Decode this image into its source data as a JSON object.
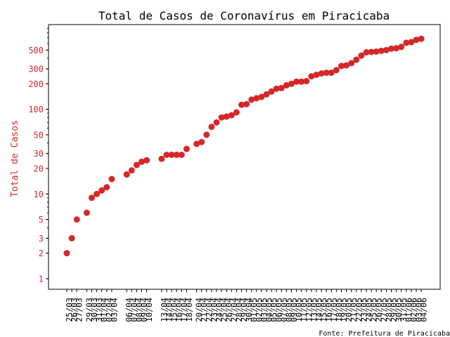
{
  "chart_data": {
    "type": "scatter",
    "title": "Total de Casos de Coronavírus em Piracicaba",
    "ylabel": "Total de Casos",
    "xlabel": "",
    "yscale": "log",
    "ylim": [
      0.75,
      1000
    ],
    "yticks": [
      1,
      2,
      3,
      5,
      10,
      20,
      30,
      50,
      100,
      200,
      300,
      500
    ],
    "ytick_labels": [
      "1",
      "2",
      "3",
      "5",
      "10",
      "20",
      "30",
      "50",
      "100",
      "200",
      "300",
      "500"
    ],
    "grid": false,
    "series_color": "#d62728",
    "axis_label_color": "#d62728",
    "x": [
      "25/03",
      "26/03",
      "27/03",
      "29/03",
      "30/03",
      "31/03",
      "01/04",
      "02/04",
      "03/04",
      "06/04",
      "07/04",
      "08/04",
      "09/04",
      "10/04",
      "13/04",
      "14/04",
      "15/04",
      "16/04",
      "17/04",
      "18/04",
      "20/04",
      "21/04",
      "22/04",
      "23/04",
      "24/04",
      "25/04",
      "26/04",
      "27/04",
      "28/04",
      "29/04",
      "30/04",
      "01/05",
      "02/05",
      "03/05",
      "04/05",
      "05/05",
      "06/05",
      "07/05",
      "08/05",
      "09/05",
      "10/05",
      "11/05",
      "12/05",
      "13/05",
      "14/05",
      "15/05",
      "16/05",
      "17/05",
      "18/05",
      "19/05",
      "20/05",
      "21/05",
      "22/05",
      "23/05",
      "24/05",
      "25/05",
      "26/05",
      "27/05",
      "28/05",
      "29/05",
      "30/05",
      "31/05",
      "01/06",
      "02/06",
      "03/06",
      "04/06"
    ],
    "x_index": [
      0,
      1,
      2,
      4,
      5,
      6,
      7,
      8,
      9,
      12,
      13,
      14,
      15,
      16,
      19,
      20,
      21,
      22,
      23,
      24,
      26,
      27,
      28,
      29,
      30,
      31,
      32,
      33,
      34,
      35,
      36,
      37,
      38,
      39,
      40,
      41,
      42,
      43,
      44,
      45,
      46,
      47,
      48,
      49,
      50,
      51,
      52,
      53,
      54,
      55,
      56,
      57,
      58,
      59,
      60,
      61,
      62,
      63,
      64,
      65,
      66,
      67,
      68,
      69,
      70,
      71
    ],
    "values": [
      2,
      3,
      5,
      6,
      9,
      10,
      11,
      12,
      15,
      17,
      19,
      22,
      24,
      25,
      26,
      29,
      29,
      29,
      29,
      34,
      39,
      41,
      50,
      62,
      70,
      80,
      82,
      85,
      92,
      113,
      115,
      130,
      135,
      140,
      150,
      162,
      175,
      178,
      192,
      200,
      212,
      212,
      215,
      245,
      255,
      265,
      270,
      270,
      290,
      325,
      330,
      350,
      385,
      430,
      470,
      475,
      480,
      490,
      500,
      520,
      525,
      545,
      610,
      620,
      660,
      680
    ]
  },
  "source_note": "Fonte: Prefeitura de Piracicaba"
}
